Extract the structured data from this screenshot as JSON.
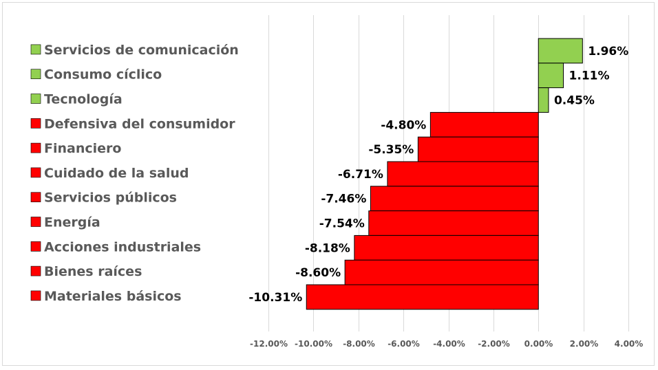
{
  "chart_data": {
    "type": "bar",
    "orientation": "horizontal",
    "title": "",
    "xlabel": "",
    "ylabel": "",
    "xlim": [
      -12,
      4
    ],
    "x_ticks": [
      -12,
      -10,
      -8,
      -6,
      -4,
      -2,
      0,
      2,
      4
    ],
    "x_tick_labels": [
      "-12.00%",
      "-10.00%",
      "-8.00%",
      "-6.00%",
      "-4.00%",
      "-2.00%",
      "0.00%",
      "2.00%",
      "4.00%"
    ],
    "grid": true,
    "legend_position": "left",
    "categories": [
      "Servicios de comunicación",
      "Consumo cíclico",
      "Tecnología",
      "Defensiva del consumidor",
      "Financiero",
      "Cuidado de la salud",
      "Servicios públicos",
      "Energía",
      "Acciones industriales",
      "Bienes raíces",
      "Materiales básicos"
    ],
    "values": [
      1.96,
      1.11,
      0.45,
      -4.8,
      -5.35,
      -6.71,
      -7.46,
      -7.54,
      -8.18,
      -8.6,
      -10.31
    ],
    "value_labels": [
      "1.96%",
      "1.11%",
      "0.45%",
      "-4.80%",
      "-5.35%",
      "-6.71%",
      "-7.46%",
      "-7.54%",
      "-8.18%",
      "-8.60%",
      "-10.31%"
    ],
    "colors": {
      "positive": "#92d050",
      "negative": "#ff0000",
      "bar_outline": "#000000",
      "category_text": "#595959",
      "value_text": "#000000",
      "grid": "#d9d9d9"
    }
  }
}
